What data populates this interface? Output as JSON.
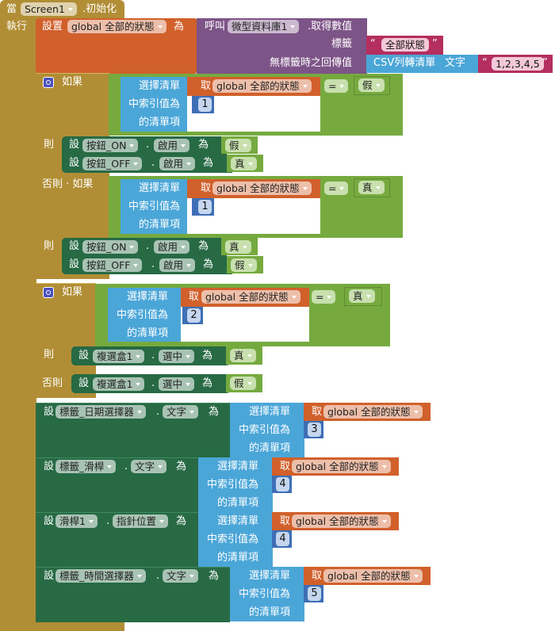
{
  "colors": {
    "event": "#b18e35",
    "variable": "#d1602b",
    "procedure": "#7d5487",
    "text": "#b42e5e",
    "list": "#4ba6d8",
    "logic": "#76aa3f",
    "component": "#276a44",
    "math": "#3e6fb6"
  },
  "event": {
    "keyword": "當",
    "component": "Screen1",
    "event": ".初始化",
    "do_label": "執行"
  },
  "init_set": {
    "keyword": "設置",
    "variable": "global 全部的狀態",
    "to": "為",
    "call": "呼叫",
    "db": "微型資料庫1",
    "method": ".取得數值",
    "tag_label": "標籤",
    "tag_value": "全部狀態",
    "default_label": "無標籤時之回傳值",
    "csv_label": "CSV列轉清單",
    "csv_text_label": "文字",
    "csv_value": "1,2,3,4,5",
    "quote": "“",
    "quote_end": "”"
  },
  "common": {
    "select_1": "選擇清單",
    "select_2": "中索引值為",
    "select_3": "的清單項",
    "get": "取",
    "var": "global 全部的狀態",
    "eq": "=",
    "set": "設",
    "to": "為",
    "dot": ".",
    "if": "如果",
    "then": "則",
    "elseif": "否則 · 如果",
    "else": "否則"
  },
  "if1": {
    "index": "1",
    "compare": "假",
    "then": [
      {
        "component": "按鈕_ON",
        "prop": "啟用",
        "value": "假"
      },
      {
        "component": "按鈕_OFF",
        "prop": "啟用",
        "value": "真"
      }
    ],
    "elseif_index": "1",
    "elseif_compare": "真",
    "elseif_then": [
      {
        "component": "按鈕_ON",
        "prop": "啟用",
        "value": "真"
      },
      {
        "component": "按鈕_OFF",
        "prop": "啟用",
        "value": "假"
      }
    ]
  },
  "if2": {
    "index": "2",
    "compare": "真",
    "then": {
      "component": "複選盒1",
      "prop": "選中",
      "value": "真"
    },
    "else": {
      "component": "複選盒1",
      "prop": "選中",
      "value": "假"
    }
  },
  "setters": [
    {
      "component": "標籤_日期選擇器",
      "prop": "文字",
      "index": "3"
    },
    {
      "component": "標籤_滑桿",
      "prop": "文字",
      "index": "4"
    },
    {
      "component": "滑桿1",
      "prop": "指針位置",
      "index": "4"
    },
    {
      "component": "標籤_時間選擇器",
      "prop": "文字",
      "index": "5"
    }
  ]
}
